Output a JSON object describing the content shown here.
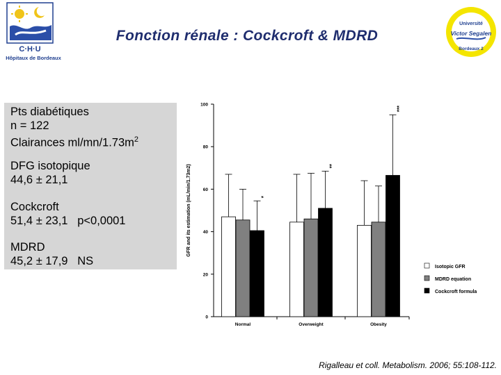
{
  "header": {
    "title": "Fonction rénale : Cockcroft & MDRD",
    "left_logo": {
      "text": "C·H·U",
      "subtitle": "Hôpitaux de Bordeaux"
    },
    "right_logo": {
      "line1": "Université",
      "line2": "Victor Segalen",
      "line3": "Bordeaux 2"
    }
  },
  "info_panel": {
    "patients": {
      "line1": "Pts diabétiques",
      "line2": "n = 122",
      "line3_main": "Clairances ml/mn/1.73m",
      "line3_sup": "2"
    },
    "dfg": {
      "line1": "DFG isotopique",
      "line2": "44,6 ± 21,1"
    },
    "cockcroft": {
      "line1": "Cockcroft",
      "line2": "51,4 ± 23,1   p<0,0001"
    },
    "mdrd": {
      "line1": "MDRD",
      "line2": "45,2 ± 17,9   NS"
    }
  },
  "chart_data": {
    "type": "bar",
    "ylabel": "GFR and its estimation (mL/min/1.73m2)",
    "ylim": [
      0,
      100
    ],
    "yticks": [
      0,
      20,
      40,
      60,
      80,
      100
    ],
    "categories": [
      "Normal",
      "Overweight",
      "Obesity"
    ],
    "series": [
      {
        "name": "Isotopic GFR",
        "color": "#ffffff",
        "values": [
          47,
          44.5,
          43
        ],
        "error_upper": [
          67,
          67,
          64
        ]
      },
      {
        "name": "MDRD equation",
        "color": "#808080",
        "values": [
          45.5,
          46,
          44.5
        ],
        "error_upper": [
          60,
          67.5,
          61.5
        ]
      },
      {
        "name": "Cockcroft formula",
        "color": "#000000",
        "values": [
          40.5,
          51,
          66.5
        ],
        "error_upper": [
          54.5,
          68.5,
          95
        ]
      }
    ],
    "annotations": [
      {
        "category": "Normal",
        "series": "Cockcroft formula",
        "text": "*"
      },
      {
        "category": "Overweight",
        "series": "Cockcroft formula",
        "text": "**"
      },
      {
        "category": "Obesity",
        "series": "Cockcroft formula",
        "text": "***"
      }
    ],
    "legend_position": "right"
  },
  "citation": "Rigalleau et coll. Metabolism. 2006; 55:108-112."
}
